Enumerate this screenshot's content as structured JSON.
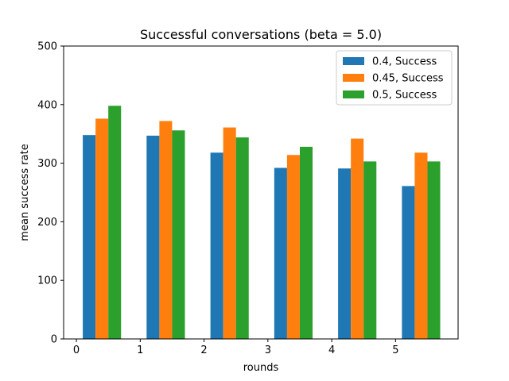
{
  "chart_data": {
    "type": "bar",
    "title": "Successful conversations (beta = 5.0)",
    "xlabel": "rounds",
    "ylabel": "mean success rate",
    "x": [
      0,
      1,
      2,
      3,
      4,
      5
    ],
    "xticks": [
      "0",
      "1",
      "2",
      "3",
      "4",
      "5"
    ],
    "yticks": [
      "0",
      "100",
      "200",
      "300",
      "400",
      "500"
    ],
    "xlim": [
      -0.2,
      5.98
    ],
    "ylim": [
      0,
      500
    ],
    "grid": false,
    "legend_position": "top-right",
    "series": [
      {
        "name": "0.4, Success",
        "color": "#1f77b4",
        "values": [
          348,
          347,
          318,
          292,
          291,
          261
        ]
      },
      {
        "name": "0.45, Success",
        "color": "#ff7f0e",
        "values": [
          376,
          372,
          361,
          314,
          342,
          318
        ]
      },
      {
        "name": "0.5, Success",
        "color": "#2ca02c",
        "values": [
          398,
          356,
          344,
          328,
          303,
          303
        ]
      }
    ]
  }
}
